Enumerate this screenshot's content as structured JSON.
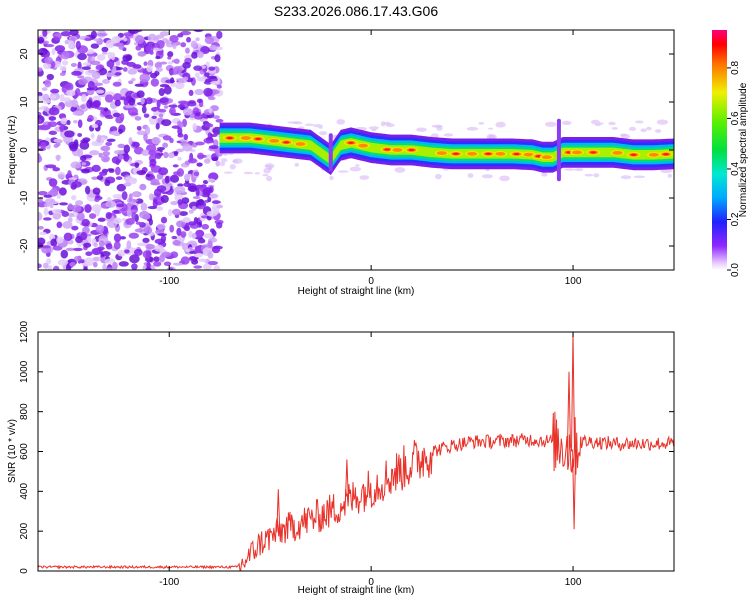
{
  "title": "S233.2026.086.17.43.G06",
  "chart_data": [
    {
      "type": "heatmap",
      "name": "spectrogram",
      "xlabel": "Height of straight line (km)",
      "ylabel": "Frequency (Hz)",
      "xlim": [
        -165,
        150
      ],
      "ylim": [
        -25,
        25
      ],
      "xticks": [
        -100,
        0,
        100
      ],
      "xtick_labels": [
        "-100",
        "0",
        "100"
      ],
      "yticks": [
        -20,
        -10,
        0,
        10,
        20
      ],
      "ytick_labels": [
        "-20",
        "-10",
        "0",
        "10",
        "20"
      ],
      "noise_region_x": [
        -165,
        -75
      ],
      "ridge": {
        "x": [
          -75,
          -70,
          -60,
          -50,
          -40,
          -30,
          -25,
          -20,
          -15,
          -10,
          0,
          10,
          20,
          30,
          40,
          50,
          60,
          70,
          80,
          85,
          90,
          95,
          100,
          110,
          120,
          130,
          140,
          150
        ],
        "freq": [
          2.5,
          2.5,
          2.5,
          2.0,
          1.5,
          1.0,
          -0.5,
          -2.0,
          1.0,
          1.5,
          0.5,
          0.0,
          0.0,
          -0.5,
          -0.8,
          -0.8,
          -0.8,
          -0.8,
          -1.0,
          -1.5,
          -1.5,
          -0.5,
          -0.5,
          -0.5,
          -0.5,
          -1.0,
          -1.0,
          -0.8
        ]
      },
      "colorbar": {
        "label": "Normalized spectral amplitude",
        "range": [
          0.0,
          0.95
        ],
        "ticks": [
          0.0,
          0.2,
          0.4,
          0.6,
          0.8
        ],
        "tick_labels": [
          "0.0",
          "0.2",
          "0.4",
          "0.6",
          "0.8"
        ]
      }
    },
    {
      "type": "line",
      "name": "snr",
      "xlabel": "Height of straight line (km)",
      "ylabel": "SNR (10 * v/v)",
      "xlim": [
        -165,
        150
      ],
      "ylim": [
        0,
        1200
      ],
      "xticks": [
        -100,
        0,
        100
      ],
      "xtick_labels": [
        "-100",
        "0",
        "100"
      ],
      "yticks": [
        0,
        200,
        400,
        600,
        800,
        1000,
        1200
      ],
      "ytick_labels": [
        "0",
        "200",
        "400",
        "600",
        "800",
        "1000",
        "1200"
      ],
      "series": [
        {
          "name": "SNR",
          "color": "#e8322a",
          "x": [
            -165,
            -150,
            -130,
            -110,
            -90,
            -80,
            -70,
            -65,
            -60,
            -55,
            -50,
            -45,
            -40,
            -35,
            -30,
            -25,
            -20,
            -15,
            -10,
            -5,
            0,
            10,
            20,
            30,
            40,
            50,
            60,
            70,
            80,
            90,
            95,
            98,
            100,
            102,
            105,
            110,
            120,
            130,
            140,
            150
          ],
          "values": [
            20,
            20,
            20,
            20,
            20,
            20,
            20,
            20,
            80,
            140,
            170,
            200,
            220,
            240,
            260,
            280,
            300,
            330,
            360,
            390,
            420,
            480,
            540,
            600,
            630,
            650,
            650,
            655,
            660,
            650,
            640,
            620,
            600,
            640,
            650,
            650,
            640,
            640,
            640,
            640
          ]
        }
      ],
      "spikes": [
        {
          "x": -46,
          "y": 410
        },
        {
          "x": -12,
          "y": 560
        },
        {
          "x": 98,
          "y": 1000
        },
        {
          "x": 100,
          "y": 1200
        },
        {
          "x": 100.5,
          "y": 210
        }
      ]
    }
  ]
}
